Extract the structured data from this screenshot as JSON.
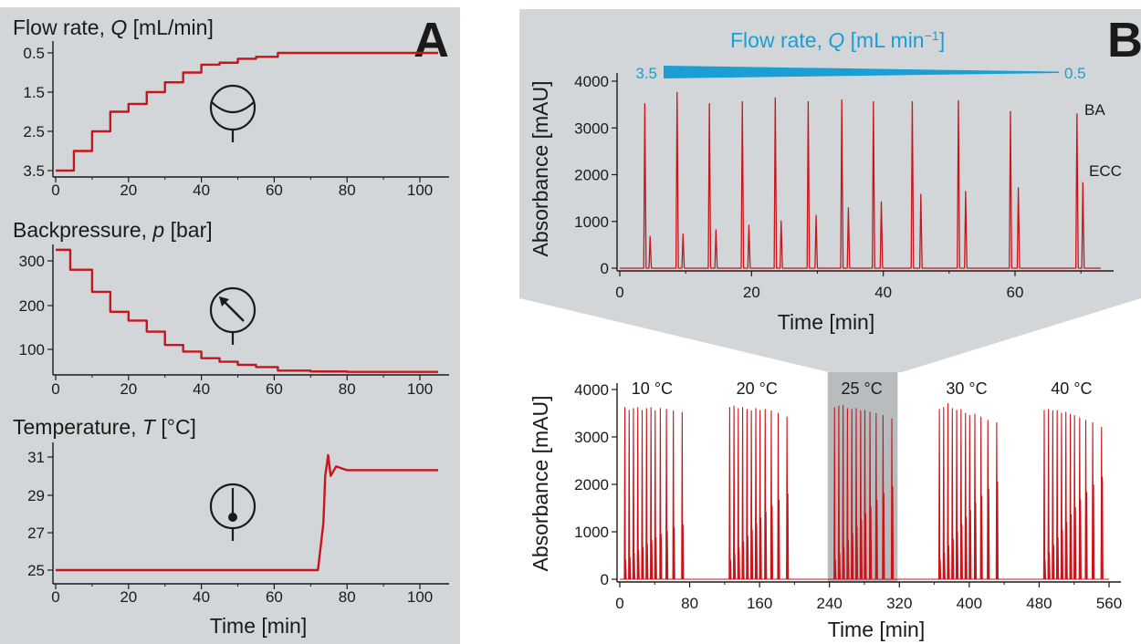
{
  "colors": {
    "panel_bg": "#d3d6d8",
    "trace": "#c8151b",
    "flow_gradient": "#1a9ed4",
    "highlight": "#b9bcbe"
  },
  "panel_letters": {
    "a": "A",
    "b": "B"
  },
  "icons": {
    "flow": "flowmeter-icon",
    "pressure": "pressure-gauge-icon",
    "temperature": "thermometer-icon"
  },
  "chart_data": [
    {
      "id": "flow",
      "type": "line",
      "title": "Flow rate, Q [mL/min]",
      "title_parts": [
        "Flow rate, ",
        "Q",
        " [mL/min]"
      ],
      "xlabel": "",
      "xlim": [
        0,
        110
      ],
      "ylim": [
        0.3,
        3.7
      ],
      "xticks": [
        "0",
        "20",
        "40",
        "60",
        "80",
        "100"
      ],
      "yticks": [
        "0.5",
        "1.5",
        "2.5",
        "3.5"
      ],
      "series": [
        {
          "style": "step",
          "x": [
            0,
            5,
            10,
            15,
            20,
            25,
            30,
            35,
            40,
            45,
            50,
            55,
            61,
            105
          ],
          "y": [
            3.5,
            3.0,
            2.5,
            2.0,
            1.8,
            1.5,
            1.25,
            1.0,
            0.8,
            0.75,
            0.65,
            0.6,
            0.5,
            0.5
          ]
        }
      ]
    },
    {
      "id": "pressure",
      "type": "line",
      "title": "Backpressure, p [bar]",
      "title_parts": [
        "Backpressure, ",
        "p",
        " [bar]"
      ],
      "xlabel": "",
      "xlim": [
        0,
        110
      ],
      "ylim": [
        40,
        340
      ],
      "xticks": [
        "0",
        "20",
        "40",
        "60",
        "80",
        "100"
      ],
      "yticks": [
        "100",
        "200",
        "300"
      ],
      "series": [
        {
          "style": "step",
          "x": [
            0,
            4,
            10,
            15,
            20,
            25,
            30,
            35,
            40,
            45,
            50,
            55,
            61,
            70,
            80,
            105
          ],
          "y": [
            325,
            280,
            230,
            185,
            165,
            140,
            110,
            95,
            80,
            72,
            65,
            60,
            52,
            50,
            49,
            49
          ]
        }
      ]
    },
    {
      "id": "temperature",
      "type": "line",
      "title": "Temperature, T [°C]",
      "title_parts": [
        "Temperature, ",
        "T",
        " [°C]"
      ],
      "xlabel": "Time [min]",
      "xlim": [
        0,
        110
      ],
      "ylim": [
        24.4,
        31.6
      ],
      "xticks": [
        "0",
        "20",
        "40",
        "60",
        "80",
        "100"
      ],
      "yticks": [
        "25",
        "27",
        "29",
        "31"
      ],
      "series": [
        {
          "style": "line",
          "x": [
            0,
            72,
            73.5,
            74,
            74.8,
            75.5,
            77,
            80,
            90,
            105
          ],
          "y": [
            25.0,
            25.0,
            27.5,
            30.0,
            31.1,
            30.0,
            30.5,
            30.3,
            30.3,
            30.3
          ]
        }
      ]
    },
    {
      "id": "zoom",
      "type": "line",
      "title": "",
      "xlabel": "Time [min]",
      "ylabel": "Absorbance [mAU]",
      "xlim": [
        0,
        75
      ],
      "ylim": [
        -200,
        4400
      ],
      "xticks": [
        "0",
        "20",
        "40",
        "60"
      ],
      "yticks": [
        "0",
        "1000",
        "2000",
        "3000",
        "4000"
      ],
      "annotations": {
        "flow_title": [
          "Flow rate, ",
          "Q",
          " [mL min",
          "−1",
          "]"
        ],
        "flow_start": "3.5",
        "flow_end": "0.5",
        "peak_labels": [
          "BA",
          "ECC"
        ]
      },
      "injections": [
        {
          "ba_t": 3.8,
          "ba_h": 3520,
          "ecc_t": 4.6,
          "ecc_h": 680
        },
        {
          "ba_t": 8.7,
          "ba_h": 3760,
          "ecc_t": 9.6,
          "ecc_h": 730
        },
        {
          "ba_t": 13.6,
          "ba_h": 3520,
          "ecc_t": 14.6,
          "ecc_h": 820
        },
        {
          "ba_t": 18.6,
          "ba_h": 3560,
          "ecc_t": 19.6,
          "ecc_h": 920
        },
        {
          "ba_t": 23.6,
          "ba_h": 3640,
          "ecc_t": 24.5,
          "ecc_h": 1010
        },
        {
          "ba_t": 28.6,
          "ba_h": 3560,
          "ecc_t": 29.8,
          "ecc_h": 1130
        },
        {
          "ba_t": 33.7,
          "ba_h": 3600,
          "ecc_t": 34.7,
          "ecc_h": 1290
        },
        {
          "ba_t": 38.5,
          "ba_h": 3560,
          "ecc_t": 39.7,
          "ecc_h": 1420
        },
        {
          "ba_t": 44.4,
          "ba_h": 3560,
          "ecc_t": 45.7,
          "ecc_h": 1580
        },
        {
          "ba_t": 51.4,
          "ba_h": 3580,
          "ecc_t": 52.5,
          "ecc_h": 1640
        },
        {
          "ba_t": 59.3,
          "ba_h": 3350,
          "ecc_t": 60.5,
          "ecc_h": 1720
        },
        {
          "ba_t": 69.4,
          "ba_h": 3300,
          "ecc_t": 70.3,
          "ecc_h": 1830
        }
      ]
    },
    {
      "id": "overview",
      "type": "line",
      "title": "",
      "xlabel": "Time [min]",
      "ylabel": "Absorbance [mAU]",
      "xlim": [
        0,
        572
      ],
      "ylim": [
        -200,
        4400
      ],
      "xticks": [
        "0",
        "80",
        "160",
        "240",
        "320",
        "400",
        "480",
        "560"
      ],
      "yticks": [
        "0",
        "1000",
        "2000",
        "3000",
        "4000"
      ],
      "highlight_range": [
        238,
        318
      ],
      "groups": [
        {
          "label": "10 °C",
          "start": 2,
          "ba_h": [
            3620,
            3560,
            3600,
            3620,
            3560,
            3600,
            3620,
            3550,
            3600,
            3580,
            3550,
            3520
          ],
          "ecc_max": 1150
        },
        {
          "label": "20 °C",
          "start": 122,
          "ba_h": [
            3620,
            3650,
            3600,
            3620,
            3580,
            3550,
            3600,
            3560,
            3580,
            3550,
            3500,
            3420
          ],
          "ecc_max": 1800
        },
        {
          "label": "25 °C",
          "start": 242,
          "ba_h": [
            3620,
            3650,
            3660,
            3600,
            3580,
            3600,
            3550,
            3560,
            3520,
            3500,
            3450,
            3380
          ],
          "ecc_max": 1950
        },
        {
          "label": "30 °C",
          "start": 362,
          "ba_h": [
            3580,
            3620,
            3700,
            3600,
            3560,
            3580,
            3500,
            3450,
            3480,
            3420,
            3350,
            3300
          ],
          "ecc_max": 2050
        },
        {
          "label": "40 °C",
          "start": 482,
          "ba_h": [
            3560,
            3580,
            3550,
            3560,
            3500,
            3520,
            3480,
            3450,
            3400,
            3350,
            3300,
            3200
          ],
          "ecc_max": 2150
        }
      ]
    }
  ]
}
